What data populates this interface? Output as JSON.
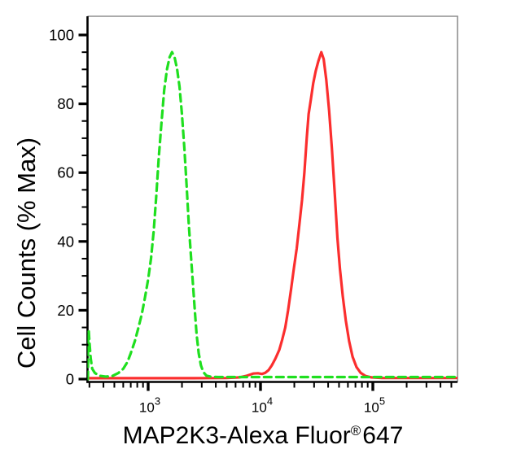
{
  "chart_data": {
    "type": "line",
    "subtype": "flow-cytometry-histogram-overlay",
    "title": "",
    "legend": "none",
    "grid": "off",
    "colors": {
      "background": "#ffffff",
      "axis": "#000000",
      "frame": "#8f8f8f",
      "green_series": "#1fdf1f",
      "red_series": "#fb2e2e"
    },
    "x_axis": {
      "title_prefix": "MAP2K3-Alexa Fluor",
      "title_registered": "®",
      "title_suffix": "647",
      "scale": "log",
      "range": [
        290,
        570000
      ],
      "major_ticks": [
        {
          "value": 1000,
          "base": "10",
          "exponent": "3"
        },
        {
          "value": 10000,
          "base": "10",
          "exponent": "4"
        },
        {
          "value": 100000,
          "base": "10",
          "exponent": "5"
        }
      ],
      "minor_ticks_per_decade": "2-9"
    },
    "y_axis": {
      "title": "Cell Counts (% Max)",
      "range": [
        0,
        105
      ],
      "major_ticks": [
        0,
        20,
        40,
        60,
        80,
        100
      ],
      "minor_tick_step": 5
    },
    "series": [
      {
        "id": "red-solid-histogram",
        "style": "solid",
        "color": "#fb2e2e",
        "peak": {
          "x": 34800,
          "y": 95
        },
        "points": [
          [
            291,
            0.25
          ],
          [
            1000,
            0.25
          ],
          [
            2500,
            0.25
          ],
          [
            5000,
            0.3
          ],
          [
            6500,
            0.5
          ],
          [
            7600,
            1.0
          ],
          [
            8600,
            1.6
          ],
          [
            9500,
            1.7
          ],
          [
            10300,
            1.5
          ],
          [
            11000,
            1.8
          ],
          [
            11800,
            2.6
          ],
          [
            12600,
            4
          ],
          [
            13600,
            6
          ],
          [
            14700,
            8.5
          ],
          [
            15600,
            11.5
          ],
          [
            16600,
            15
          ],
          [
            17600,
            20
          ],
          [
            18700,
            26
          ],
          [
            19800,
            32
          ],
          [
            21000,
            38
          ],
          [
            22200,
            45
          ],
          [
            23400,
            52
          ],
          [
            24600,
            60
          ],
          [
            25800,
            70
          ],
          [
            26800,
            77
          ],
          [
            28000,
            81
          ],
          [
            29500,
            86
          ],
          [
            31000,
            89.5
          ],
          [
            32800,
            92.5
          ],
          [
            34800,
            95
          ],
          [
            36500,
            93
          ],
          [
            38500,
            87
          ],
          [
            40800,
            78
          ],
          [
            43200,
            67
          ],
          [
            45800,
            54
          ],
          [
            48400,
            41
          ],
          [
            51000,
            32
          ],
          [
            54000,
            24
          ],
          [
            57500,
            17
          ],
          [
            61500,
            11
          ],
          [
            66000,
            6.5
          ],
          [
            71500,
            3.5
          ],
          [
            78000,
            1.8
          ],
          [
            86000,
            0.9
          ],
          [
            97000,
            0.5
          ],
          [
            120000,
            0.3
          ],
          [
            200000,
            0.3
          ],
          [
            380000,
            0.3
          ],
          [
            560000,
            0.3
          ]
        ]
      },
      {
        "id": "green-dashed-histogram",
        "style": "dashed",
        "color": "#1fdf1f",
        "peak": {
          "x": 1630,
          "y": 95
        },
        "points": [
          [
            291,
            0
          ],
          [
            293,
            13.5
          ],
          [
            296,
            14
          ],
          [
            300,
            11
          ],
          [
            308,
            6
          ],
          [
            318,
            3
          ],
          [
            335,
            1.8
          ],
          [
            365,
            1.0
          ],
          [
            420,
            0.7
          ],
          [
            480,
            0.9
          ],
          [
            545,
            1.8
          ],
          [
            600,
            3
          ],
          [
            655,
            5
          ],
          [
            700,
            7.5
          ],
          [
            760,
            11
          ],
          [
            820,
            15
          ],
          [
            880,
            19
          ],
          [
            940,
            24
          ],
          [
            1000,
            29
          ],
          [
            1060,
            35
          ],
          [
            1120,
            43
          ],
          [
            1180,
            53
          ],
          [
            1240,
            64
          ],
          [
            1310,
            74
          ],
          [
            1390,
            84
          ],
          [
            1470,
            90
          ],
          [
            1550,
            93.5
          ],
          [
            1630,
            95
          ],
          [
            1720,
            93.5
          ],
          [
            1810,
            90
          ],
          [
            1900,
            85
          ],
          [
            2000,
            77
          ],
          [
            2100,
            67
          ],
          [
            2200,
            56
          ],
          [
            2300,
            45
          ],
          [
            2400,
            36
          ],
          [
            2500,
            28
          ],
          [
            2600,
            20
          ],
          [
            2700,
            13
          ],
          [
            2820,
            7.5
          ],
          [
            2950,
            4
          ],
          [
            3100,
            2
          ],
          [
            3300,
            1
          ],
          [
            3600,
            0.7
          ],
          [
            4200,
            0.6
          ],
          [
            6000,
            0.6
          ],
          [
            10000,
            0.6
          ],
          [
            20000,
            0.6
          ],
          [
            40000,
            0.6
          ],
          [
            80000,
            0.6
          ],
          [
            160000,
            0.6
          ],
          [
            300000,
            0.6
          ],
          [
            560000,
            0.6
          ]
        ]
      }
    ]
  }
}
